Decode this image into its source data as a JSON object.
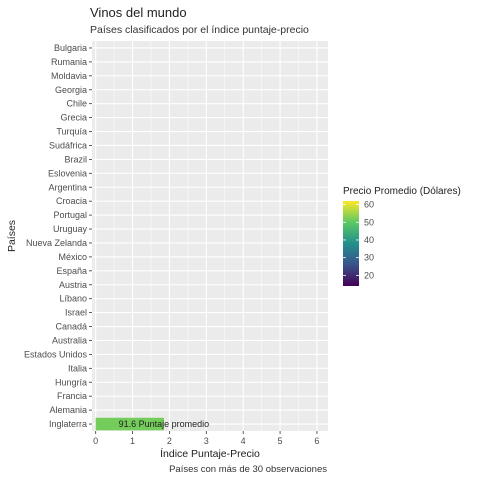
{
  "chart_data": {
    "type": "bar",
    "orientation": "horizontal",
    "title": "Vinos del mundo",
    "subtitle": "Países clasificados por el índice puntaje-precio",
    "caption": "Países con más de 30 observaciones",
    "xlabel": "Índice Puntaje-Precio",
    "ylabel": "Países",
    "xlim": [
      -0.1,
      6.3
    ],
    "xticks": [
      0,
      1,
      2,
      3,
      4,
      5,
      6
    ],
    "grid": true,
    "categories": [
      "Bulgaria",
      "Rumania",
      "Moldavia",
      "Georgia",
      "Chile",
      "Grecia",
      "Turquía",
      "Sudáfrica",
      "Brazil",
      "Eslovenia",
      "Argentina",
      "Croacia",
      "Portugal",
      "Uruguay",
      "Nueva Zelanda",
      "México",
      "España",
      "Austria",
      "Líbano",
      "Israel",
      "Canadá",
      "Australia",
      "Estados Unidos",
      "Italia",
      "Hungría",
      "Francia",
      "Alemania",
      "Inglaterra"
    ],
    "values": [
      null,
      null,
      null,
      null,
      null,
      null,
      null,
      null,
      null,
      null,
      null,
      null,
      null,
      null,
      null,
      null,
      null,
      null,
      null,
      null,
      null,
      null,
      null,
      null,
      null,
      null,
      null,
      1.85
    ],
    "bar_color_values": [
      null,
      null,
      null,
      null,
      null,
      null,
      null,
      null,
      null,
      null,
      null,
      null,
      null,
      null,
      null,
      null,
      null,
      null,
      null,
      null,
      null,
      null,
      null,
      null,
      null,
      null,
      null,
      51.7
    ],
    "bar_labels": [
      null,
      null,
      null,
      null,
      null,
      null,
      null,
      null,
      null,
      null,
      null,
      null,
      null,
      null,
      null,
      null,
      null,
      null,
      null,
      null,
      null,
      null,
      null,
      null,
      null,
      null,
      null,
      "91.6 Puntaje promedio"
    ],
    "legend": {
      "title": "Precio Promedio (Dólares)",
      "placement": "right",
      "range": [
        14,
        62
      ],
      "ticks": [
        20,
        30,
        40,
        50,
        60
      ],
      "colormap": "viridis"
    },
    "colors": {
      "panel": "#ebebeb",
      "grid_major": "#ffffff",
      "viridis": [
        "#440154",
        "#3b528b",
        "#21908c",
        "#5dc863",
        "#fde725"
      ]
    }
  }
}
